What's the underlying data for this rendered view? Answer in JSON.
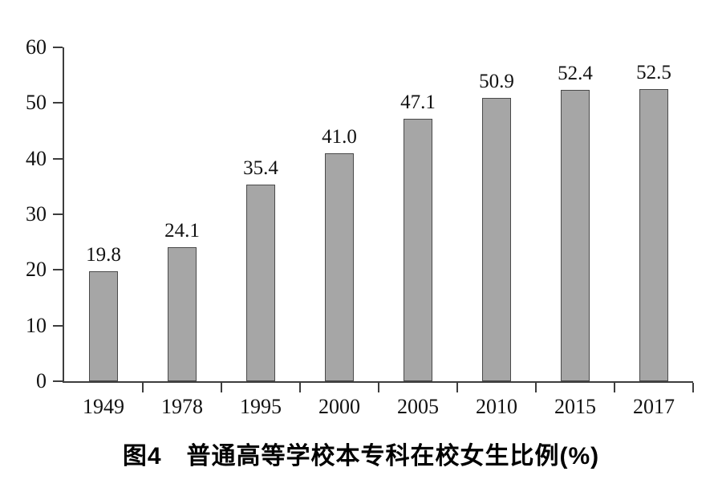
{
  "figure": {
    "caption": "图4　普通高等学校本专科在校女生比例(%)"
  },
  "chart_data": {
    "type": "bar",
    "categories": [
      "1949",
      "1978",
      "1995",
      "2000",
      "2005",
      "2010",
      "2015",
      "2017"
    ],
    "values": [
      19.8,
      24.1,
      35.4,
      41.0,
      47.1,
      50.9,
      52.4,
      52.5
    ],
    "value_labels": [
      "19.8",
      "24.1",
      "35.4",
      "41.0",
      "47.1",
      "50.9",
      "52.4",
      "52.5"
    ],
    "title": "图4　普通高等学校本专科在校女生比例(%)",
    "xlabel": "",
    "ylabel": "",
    "ylim": [
      0,
      60
    ],
    "yticks": [
      0,
      10,
      20,
      30,
      40,
      50,
      60
    ],
    "grid": false,
    "legend": "none",
    "bar_color": "#a6a6a6",
    "bar_border_color": "#4a4a4a",
    "axis_color": "#3d3d3d",
    "text_color": "#111111"
  }
}
